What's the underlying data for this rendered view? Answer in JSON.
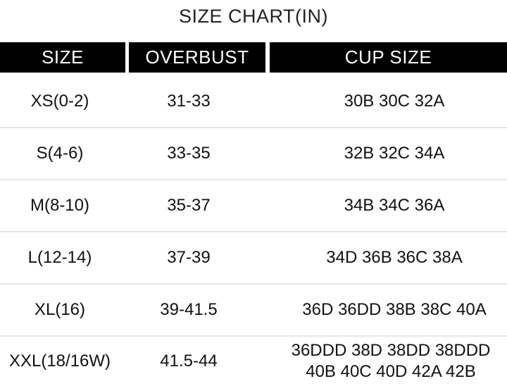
{
  "title": "SIZE CHART(IN)",
  "headers": [
    "SIZE",
    "OVERBUST",
    "CUP SIZE"
  ],
  "rows": [
    {
      "size": "XS(0-2)",
      "overbust": "31-33",
      "cup": "30B 30C 32A"
    },
    {
      "size": "S(4-6)",
      "overbust": "33-35",
      "cup": "32B 32C 34A"
    },
    {
      "size": "M(8-10)",
      "overbust": "35-37",
      "cup": "34B 34C 36A"
    },
    {
      "size": "L(12-14)",
      "overbust": "37-39",
      "cup": "34D 36B 36C 38A"
    },
    {
      "size": "XL(16)",
      "overbust": "39-41.5",
      "cup": "36D 36DD 38B 38C 40A"
    },
    {
      "size": "XXL(18/16W)",
      "overbust": "41.5-44",
      "cup": "36DDD 38D 38DD 38DDD 40B 40C 40D 42A 42B"
    }
  ]
}
